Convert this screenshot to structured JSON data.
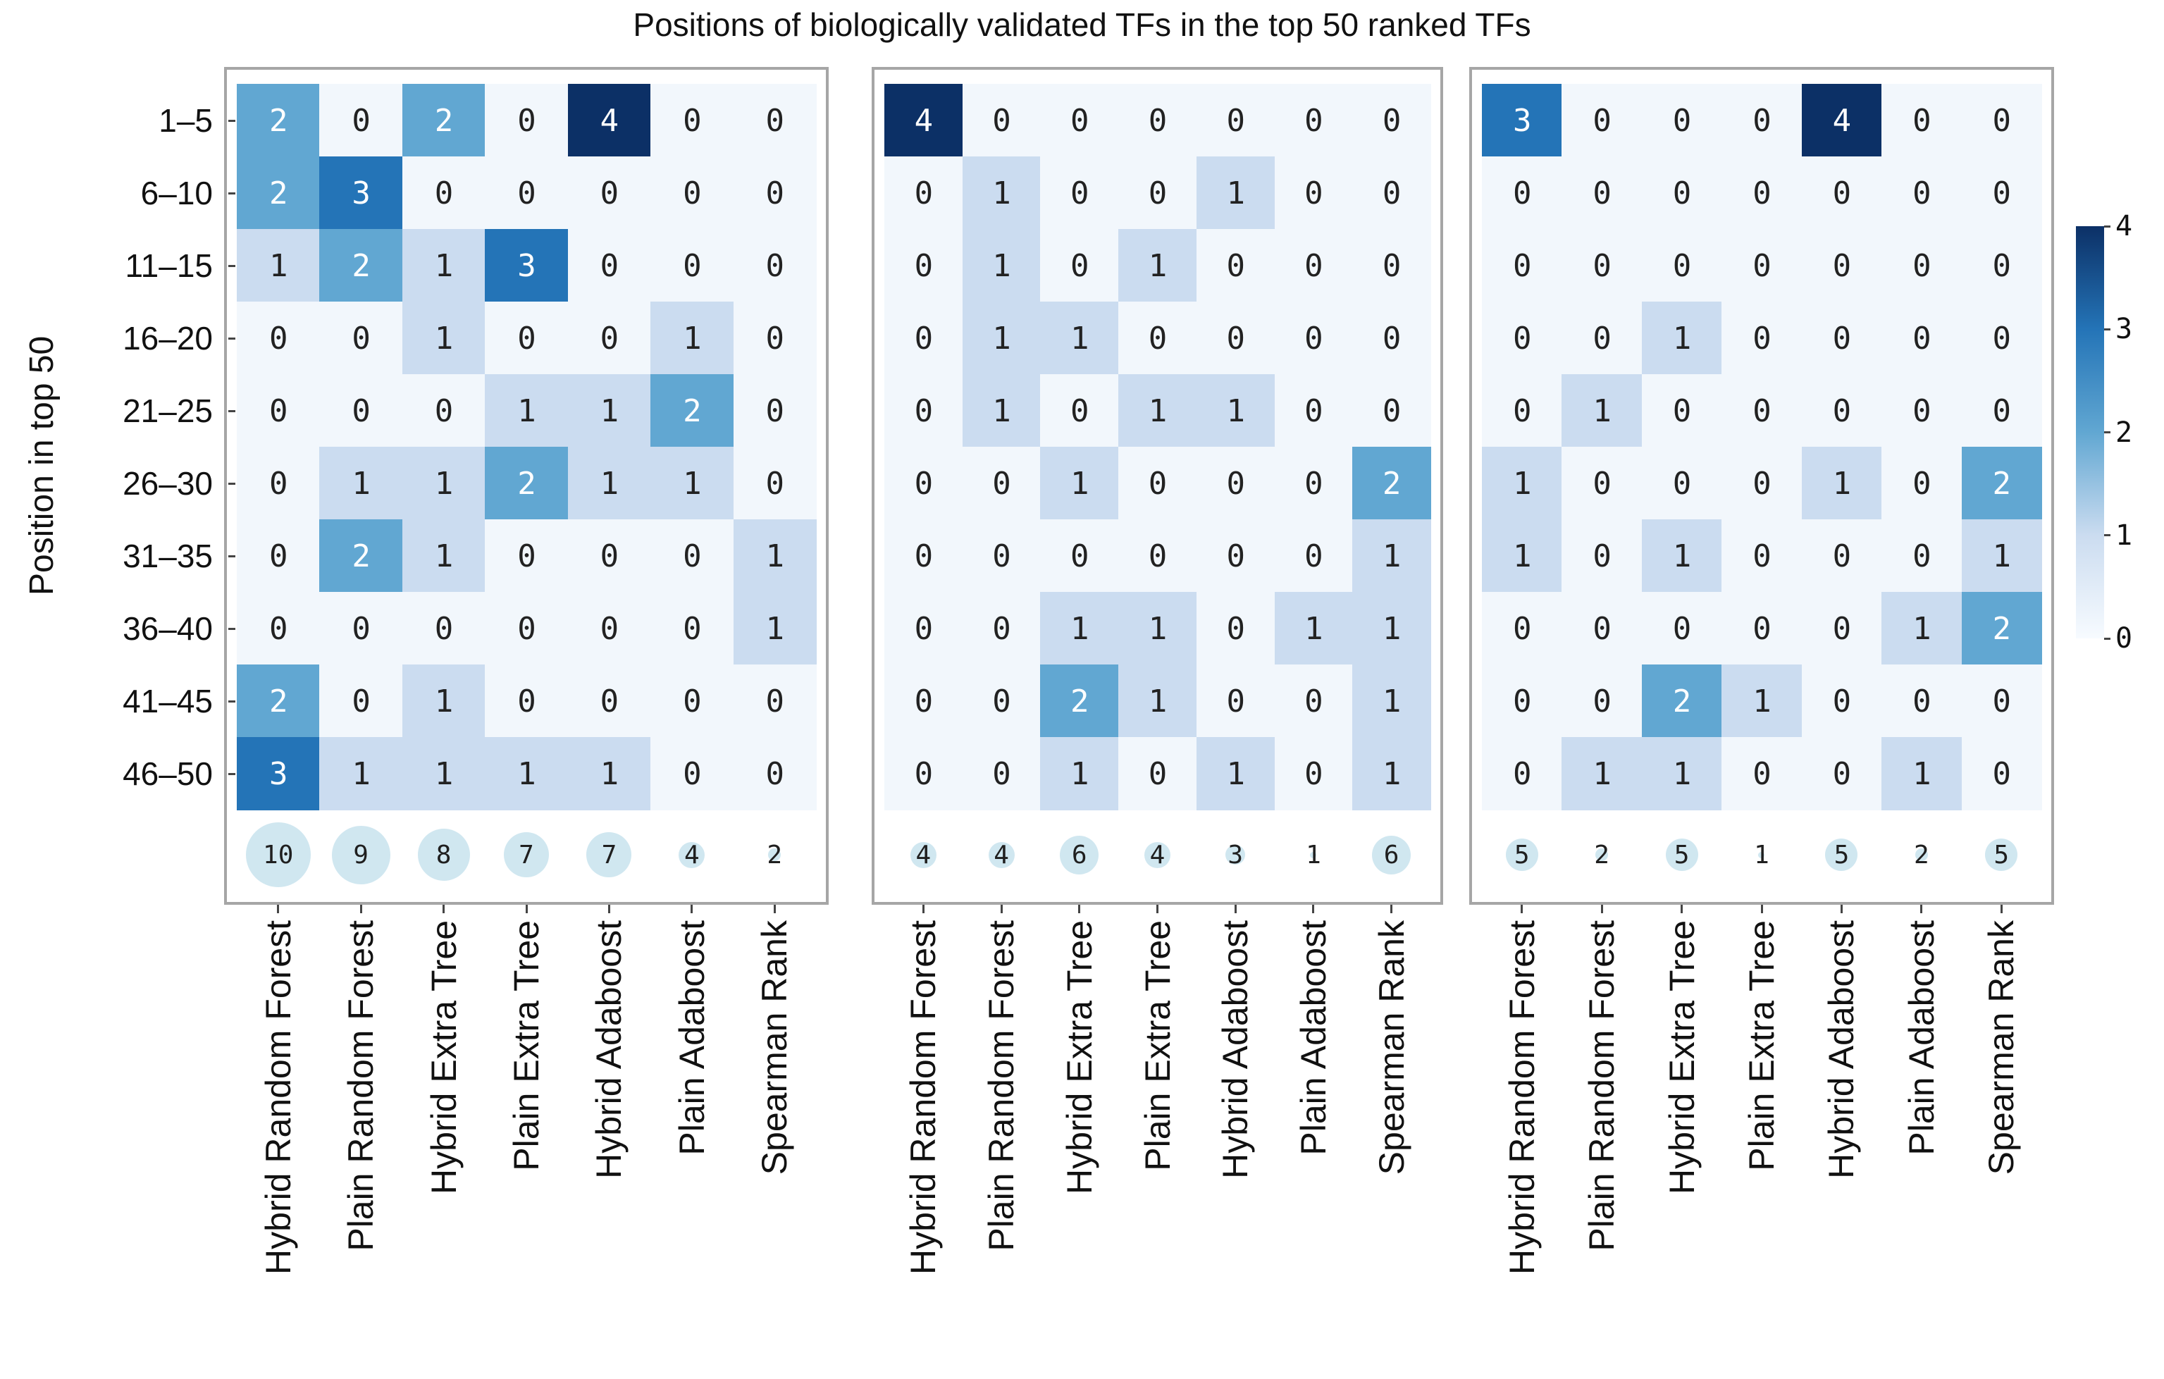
{
  "palette": {
    "v0": "#f2f7fc",
    "v1": "#cbdcf0",
    "v2": "#61a7d2",
    "v3": "#2474b7",
    "v4": "#0c3066",
    "cell_text_dark": "#222222",
    "cell_text_light": "#ffffff",
    "bubble_fill": "#d0e7f0",
    "panel_border": "#a6a6a6",
    "tick_color": "#444444"
  },
  "chart_data": {
    "type": "heatmap",
    "title": "Positions of biologically validated TFs in the top 50 ranked TFs",
    "ylabel": "Position in top 50",
    "rows": [
      "1–5",
      "6–10",
      "11–15",
      "16–20",
      "21–25",
      "26–30",
      "31–35",
      "36–40",
      "41–45",
      "46–50"
    ],
    "columns": [
      "Hybrid Random Forest",
      "Plain Random Forest",
      "Hybrid Extra Tree",
      "Plain Extra Tree",
      "Hybrid Adaboost",
      "Plain Adaboost",
      "Spearman Rank"
    ],
    "value_range": [
      0,
      4
    ],
    "colorbar_ticks": [
      4,
      3,
      2,
      1,
      0
    ],
    "legend_position": "right",
    "panels": [
      {
        "name": "left",
        "values": [
          [
            2,
            0,
            2,
            0,
            4,
            0,
            0
          ],
          [
            2,
            3,
            0,
            0,
            0,
            0,
            0
          ],
          [
            1,
            2,
            1,
            3,
            0,
            0,
            0
          ],
          [
            0,
            0,
            1,
            0,
            0,
            1,
            0
          ],
          [
            0,
            0,
            0,
            1,
            1,
            2,
            0
          ],
          [
            0,
            1,
            1,
            2,
            1,
            1,
            0
          ],
          [
            0,
            2,
            1,
            0,
            0,
            0,
            1
          ],
          [
            0,
            0,
            0,
            0,
            0,
            0,
            1
          ],
          [
            2,
            0,
            1,
            0,
            0,
            0,
            0
          ],
          [
            3,
            1,
            1,
            1,
            1,
            0,
            0
          ]
        ],
        "totals": [
          10,
          9,
          8,
          7,
          7,
          4,
          2
        ]
      },
      {
        "name": "middle",
        "values": [
          [
            4,
            0,
            0,
            0,
            0,
            0,
            0
          ],
          [
            0,
            1,
            0,
            0,
            1,
            0,
            0
          ],
          [
            0,
            1,
            0,
            1,
            0,
            0,
            0
          ],
          [
            0,
            1,
            1,
            0,
            0,
            0,
            0
          ],
          [
            0,
            1,
            0,
            1,
            1,
            0,
            0
          ],
          [
            0,
            0,
            1,
            0,
            0,
            0,
            2
          ],
          [
            0,
            0,
            0,
            0,
            0,
            0,
            1
          ],
          [
            0,
            0,
            1,
            1,
            0,
            1,
            1
          ],
          [
            0,
            0,
            2,
            1,
            0,
            0,
            1
          ],
          [
            0,
            0,
            1,
            0,
            1,
            0,
            1
          ]
        ],
        "totals": [
          4,
          4,
          6,
          4,
          3,
          1,
          6
        ]
      },
      {
        "name": "right",
        "values": [
          [
            3,
            0,
            0,
            0,
            4,
            0,
            0
          ],
          [
            0,
            0,
            0,
            0,
            0,
            0,
            0
          ],
          [
            0,
            0,
            0,
            0,
            0,
            0,
            0
          ],
          [
            0,
            0,
            1,
            0,
            0,
            0,
            0
          ],
          [
            0,
            1,
            0,
            0,
            0,
            0,
            0
          ],
          [
            1,
            0,
            0,
            0,
            1,
            0,
            2
          ],
          [
            1,
            0,
            1,
            0,
            0,
            0,
            1
          ],
          [
            0,
            0,
            0,
            0,
            0,
            1,
            2
          ],
          [
            0,
            0,
            2,
            1,
            0,
            0,
            0
          ],
          [
            0,
            1,
            1,
            0,
            0,
            1,
            0
          ]
        ],
        "totals": [
          5,
          2,
          5,
          1,
          5,
          2,
          5
        ]
      }
    ]
  }
}
